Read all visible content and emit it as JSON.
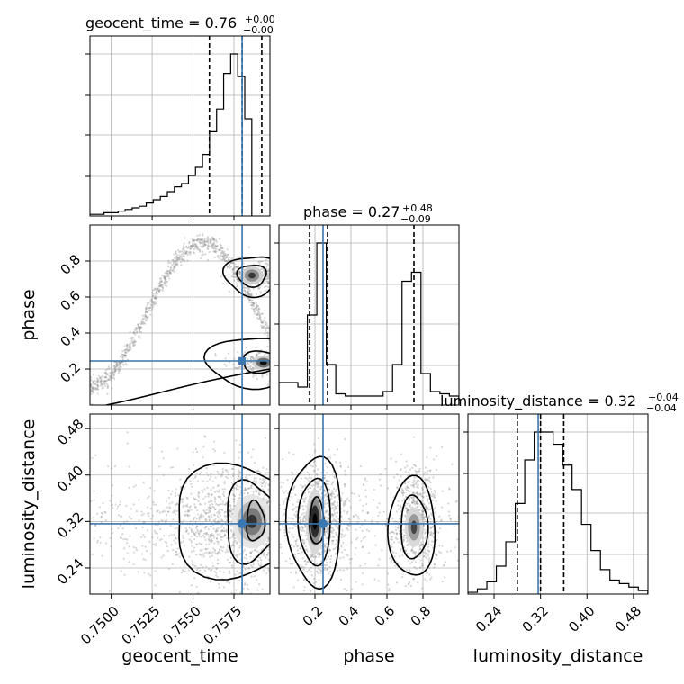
{
  "chart_data": {
    "type": "corner",
    "truth_color": "#3a76af",
    "parameters": [
      {
        "name": "geocent_time",
        "label": "geocent_time",
        "range": [
          0.7487,
          0.7597
        ],
        "ticks": [
          "0.7500",
          "0.7525",
          "0.7550",
          "0.7575"
        ],
        "tick_values": [
          0.75,
          0.7525,
          0.755,
          0.7575
        ],
        "truth": 0.758,
        "title": {
          "prefix": "geocent_time = ",
          "median": "0.76",
          "plus": "+0.00",
          "minus": "−0.00"
        },
        "quantiles": [
          0.756,
          0.758,
          0.7592
        ]
      },
      {
        "name": "phase",
        "label": "phase",
        "range": [
          0.0,
          1.0
        ],
        "ticks": [
          "0.2",
          "0.4",
          "0.6",
          "0.8"
        ],
        "tick_values": [
          0.2,
          0.4,
          0.6,
          0.8
        ],
        "truth": 0.245,
        "title": {
          "prefix": "phase = ",
          "median": "0.27",
          "plus": "+0.48",
          "minus": "−0.09"
        },
        "quantiles": [
          0.17,
          0.27,
          0.75
        ]
      },
      {
        "name": "luminosity_distance",
        "label": "luminosity_distance",
        "range": [
          0.195,
          0.505
        ],
        "ticks": [
          "0.24",
          "0.32",
          "0.40",
          "0.48"
        ],
        "tick_values": [
          0.24,
          0.32,
          0.4,
          0.48
        ],
        "truth": 0.316,
        "title": {
          "prefix": "luminosity_distance = ",
          "median": "0.32",
          "plus": "+0.04",
          "minus": "−0.04"
        },
        "quantiles": [
          0.28,
          0.32,
          0.36
        ]
      }
    ],
    "histograms": {
      "geocent_time": {
        "bin_width": 0.00043,
        "x_start": 0.7487,
        "counts": [
          0.01,
          0.01,
          0.02,
          0.02,
          0.03,
          0.04,
          0.05,
          0.06,
          0.08,
          0.1,
          0.12,
          0.15,
          0.18,
          0.2,
          0.25,
          0.3,
          0.38,
          0.52,
          0.66,
          0.88,
          1.0,
          0.86,
          0.6
        ]
      },
      "phase": {
        "bin_width": 0.0526,
        "x_start": 0.0,
        "counts": [
          0.1,
          0.1,
          0.08,
          0.4,
          0.72,
          0.18,
          0.05,
          0.04,
          0.04,
          0.04,
          0.04,
          0.06,
          0.18,
          0.55,
          0.59,
          0.14,
          0.06,
          0.05,
          0.04
        ]
      },
      "luminosity_distance": {
        "bin_width": 0.0163,
        "x_start": 0.195,
        "counts": [
          0.01,
          0.03,
          0.07,
          0.16,
          0.3,
          0.52,
          0.77,
          0.93,
          0.93,
          0.86,
          0.74,
          0.6,
          0.4,
          0.25,
          0.14,
          0.08,
          0.06,
          0.04,
          0.02
        ]
      }
    },
    "density_2d": {
      "phase_vs_geocent_time": {
        "note_modes": [
          [
            0.7585,
            0.72
          ],
          [
            0.7592,
            0.24
          ]
        ]
      },
      "luminosity_distance_vs_geocent_time": {
        "note_modes": [
          [
            0.7585,
            0.32
          ]
        ]
      },
      "luminosity_distance_vs_phase": {
        "note_modes": [
          [
            0.22,
            0.32
          ],
          [
            0.75,
            0.31
          ]
        ]
      }
    },
    "grid": true
  }
}
